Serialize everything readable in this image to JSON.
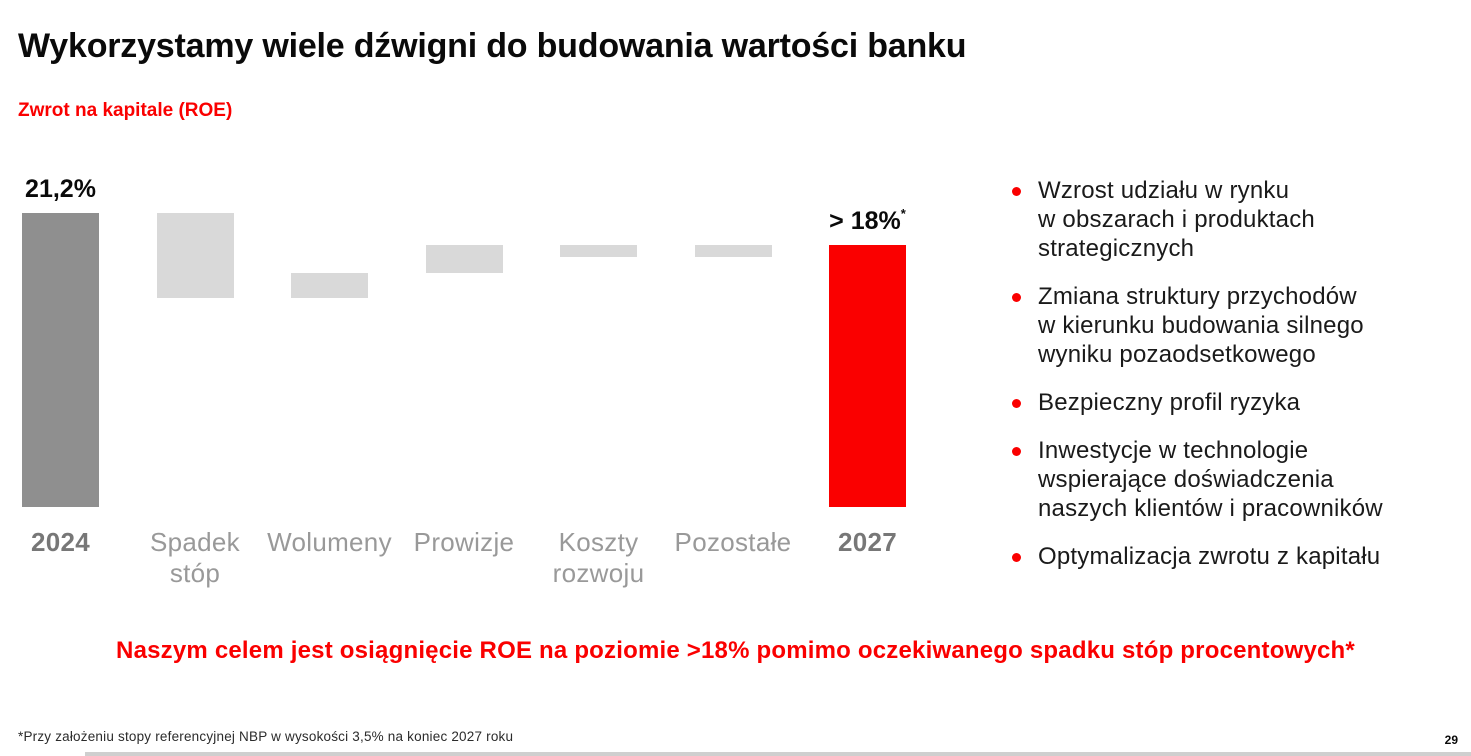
{
  "slide": {
    "title": "Wykorzystamy wiele dźwigni do budowania wartości banku",
    "subtitle": "Zwrot na kapitale (ROE)",
    "headline": "Naszym celem jest osiągnięcie ROE na poziomie >18% pomimo oczekiwanego spadku stóp procentowych*",
    "footnote": "*Przy założeniu stopy referencyjnej NBP w wysokości 3,5% na koniec 2027 roku",
    "page_number": "29"
  },
  "colors": {
    "accent_red": "#FA0000",
    "bar_dark_gray": "#8F8F8F",
    "bar_light_gray": "#D9D9D9",
    "axis_label_gray": "#999999",
    "axis_label_total_gray": "#777777",
    "text_dark": "#1A1A1A"
  },
  "bullets": [
    {
      "text": "Wzrost udziału w rynku\nw obszarach i produktach\nstrategicznych"
    },
    {
      "text": "Zmiana struktury przychodów\nw kierunku budowania silnego\nwyniku pozaodsetkowego"
    },
    {
      "text": "Bezpieczny profil ryzyka"
    },
    {
      "text": "Inwestycje w technologie\nwspierające doświadczenia\nnaszych klientów i pracowników"
    },
    {
      "text": "Optymalizacja zwrotu z kapitału"
    }
  ],
  "chart_data": {
    "type": "waterfall",
    "title": "Zwrot na kapitale (ROE)",
    "unit": "%",
    "ylim": [
      0,
      21.2
    ],
    "grid": false,
    "columns": [
      {
        "label": "2024",
        "kind": "total",
        "value": 21.2,
        "value_label": "21,2%",
        "value_label_sup": "",
        "color": "dark"
      },
      {
        "label": "Spadek\nstóp",
        "kind": "delta",
        "value": -6.1,
        "color": "light"
      },
      {
        "label": "Wolumeny",
        "kind": "delta",
        "value": 1.8,
        "color": "light"
      },
      {
        "label": "Prowizje",
        "kind": "delta",
        "value": 2.0,
        "color": "light"
      },
      {
        "label": "Koszty\nrozwoju",
        "kind": "delta",
        "value": -0.9,
        "color": "light"
      },
      {
        "label": "Pozostałe",
        "kind": "delta",
        "value": 0.9,
        "color": "light"
      },
      {
        "label": "2027",
        "kind": "total",
        "value": 18.9,
        "value_label": "> 18%",
        "value_label_sup": "*",
        "color": "red"
      }
    ]
  }
}
